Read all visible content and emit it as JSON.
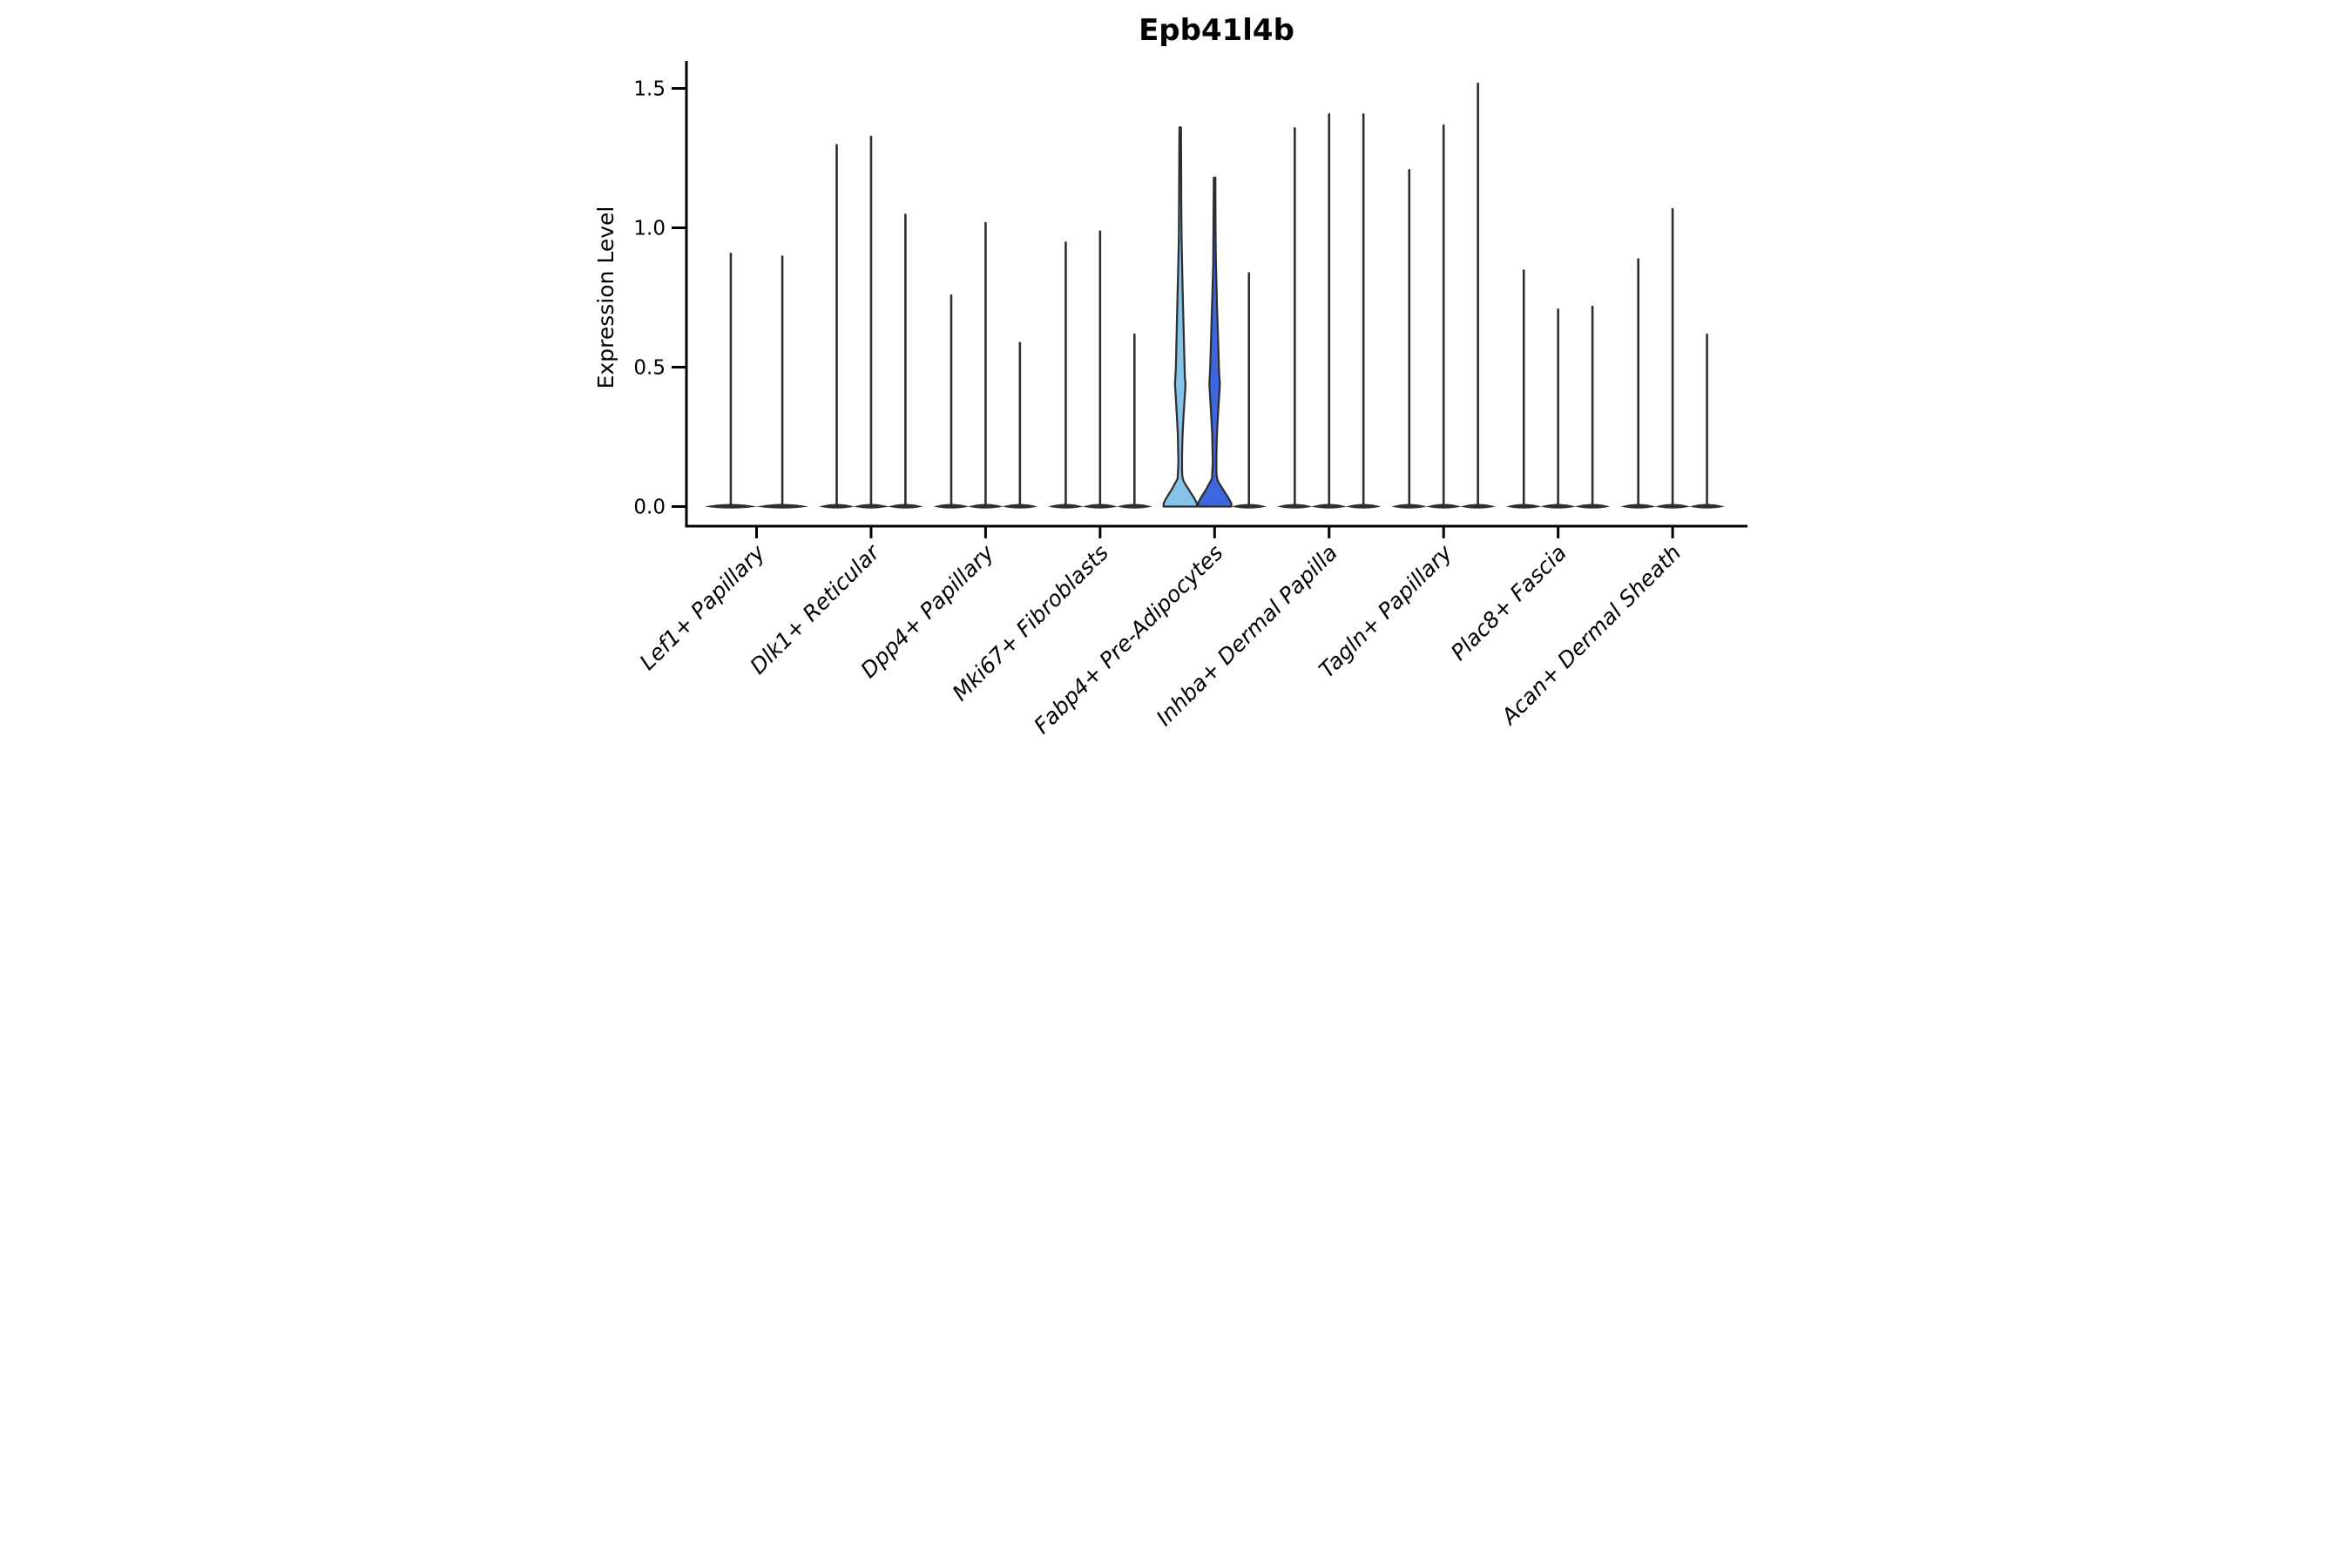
{
  "chart_data": {
    "type": "violin",
    "title": "Epb41l4b",
    "ylabel": "Expression Level",
    "xlabel": "",
    "ylim": [
      0,
      1.58
    ],
    "yticks": [
      0.0,
      0.5,
      1.0,
      1.5
    ],
    "ytick_labels": [
      "0.0",
      "0.5",
      "1.0",
      "1.5"
    ],
    "grid": false,
    "legend": false,
    "x_tick_rotation": 45,
    "categories": [
      "Lef1+ Papillary",
      "Dlk1+ Reticular",
      "Dpp4+ Papillary",
      "Mki67+ Fibroblasts",
      "Fabp4+ Pre-Adipocytes",
      "Inhba+ Dermal Papilla",
      "Tagln+ Papillary",
      "Plac8+ Fascia",
      "Acan+ Dermal Sheath"
    ],
    "groups": [
      {
        "category": "Lef1+ Papillary",
        "violins": [
          {
            "max": 0.91
          },
          {
            "max": 0.9
          }
        ]
      },
      {
        "category": "Dlk1+ Reticular",
        "violins": [
          {
            "max": 1.3
          },
          {
            "max": 1.33
          },
          {
            "max": 1.05
          }
        ]
      },
      {
        "category": "Dpp4+ Papillary",
        "violins": [
          {
            "max": 0.76
          },
          {
            "max": 1.02
          },
          {
            "max": 0.59
          }
        ]
      },
      {
        "category": "Mki67+ Fibroblasts",
        "violins": [
          {
            "max": 0.95
          },
          {
            "max": 0.99
          },
          {
            "max": 0.62
          }
        ]
      },
      {
        "category": "Fabp4+ Pre-Adipocytes",
        "violins": [
          {
            "max": 1.36,
            "filled": true,
            "fill": "#85C3E8"
          },
          {
            "max": 1.18,
            "filled": true,
            "fill": "#3E66DF"
          },
          {
            "max": 0.84
          }
        ]
      },
      {
        "category": "Inhba+ Dermal Papilla",
        "violins": [
          {
            "max": 1.36
          },
          {
            "max": 1.41
          },
          {
            "max": 1.41
          }
        ]
      },
      {
        "category": "Tagln+ Papillary",
        "violins": [
          {
            "max": 1.21
          },
          {
            "max": 1.37
          },
          {
            "max": 1.52
          }
        ]
      },
      {
        "category": "Plac8+ Fascia",
        "violins": [
          {
            "max": 0.85
          },
          {
            "max": 0.71
          },
          {
            "max": 0.72
          }
        ]
      },
      {
        "category": "Acan+ Dermal Sheath",
        "violins": [
          {
            "max": 0.89
          },
          {
            "max": 1.07
          },
          {
            "max": 0.62
          }
        ]
      }
    ],
    "colors": {
      "violin_outline": "#2e2e2e",
      "axis": "#000000",
      "background": "#ffffff",
      "highlight_light_blue": "#85C3E8",
      "highlight_royal_blue": "#3E66DF"
    }
  }
}
